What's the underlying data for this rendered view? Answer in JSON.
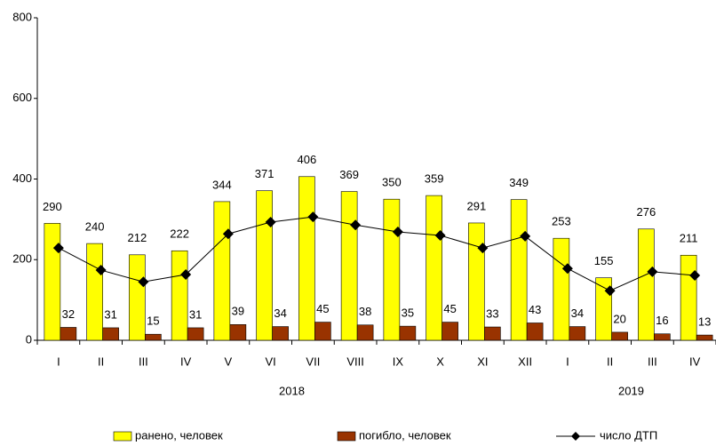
{
  "chart_data": {
    "type": "bar_line",
    "categories": [
      "I",
      "II",
      "III",
      "IV",
      "V",
      "VI",
      "VII",
      "VIII",
      "IX",
      "X",
      "XI",
      "XII",
      "I",
      "II",
      "III",
      "IV"
    ],
    "x_groups": [
      {
        "label": "2018",
        "start": 0,
        "end": 11
      },
      {
        "label": "2019",
        "start": 12,
        "end": 15
      }
    ],
    "series": [
      {
        "name": "ранено, человек",
        "type": "bar",
        "color": "#ffff00",
        "values": [
          290,
          240,
          212,
          222,
          344,
          371,
          406,
          369,
          350,
          359,
          291,
          349,
          253,
          155,
          276,
          211
        ]
      },
      {
        "name": "погибло, человек",
        "type": "bar",
        "color": "#993300",
        "values": [
          32,
          31,
          15,
          31,
          39,
          34,
          45,
          38,
          35,
          45,
          33,
          43,
          34,
          20,
          16,
          13
        ]
      },
      {
        "name": "число ДТП",
        "type": "line",
        "color": "#000000",
        "values": [
          229,
          174,
          145,
          163,
          264,
          293,
          306,
          286,
          269,
          260,
          229,
          258,
          178,
          123,
          170,
          161
        ]
      }
    ],
    "ylim": [
      0,
      800
    ],
    "yticks": [
      0,
      200,
      400,
      600,
      800
    ],
    "grid": false,
    "legend": "bottom"
  }
}
